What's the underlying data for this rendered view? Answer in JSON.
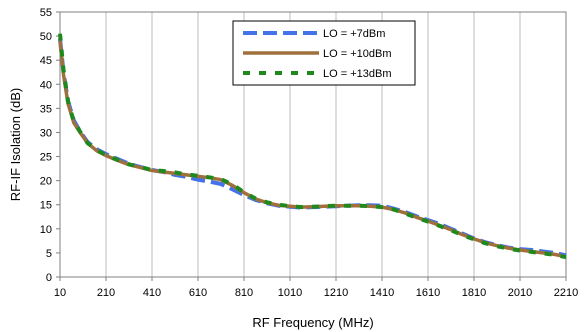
{
  "chart_data": {
    "type": "line",
    "title": "",
    "xlabel": "RF Frequency (MHz)",
    "ylabel": "RF-IF Isolation (dB)",
    "xlim": [
      10,
      2210
    ],
    "ylim": [
      0,
      55
    ],
    "x_ticks": [
      "10",
      "210",
      "410",
      "610",
      "810",
      "1010",
      "1210",
      "1410",
      "1610",
      "1810",
      "2010",
      "2210"
    ],
    "y_ticks": [
      "0",
      "5",
      "10",
      "15",
      "20",
      "25",
      "30",
      "35",
      "40",
      "45",
      "50",
      "55"
    ],
    "grid": "vertical",
    "legend_position": "top-center",
    "series": [
      {
        "name": "LO = +7dBm",
        "color": "#4472E8",
        "style": "dashed",
        "x": [
          10,
          25,
          45,
          70,
          100,
          130,
          170,
          210,
          260,
          310,
          360,
          410,
          460,
          510,
          560,
          610,
          660,
          710,
          760,
          810,
          860,
          910,
          960,
          1010,
          1060,
          1110,
          1160,
          1210,
          1260,
          1310,
          1360,
          1410,
          1460,
          1510,
          1560,
          1610,
          1660,
          1710,
          1760,
          1810,
          1860,
          1910,
          1960,
          2010,
          2060,
          2110,
          2160,
          2210
        ],
        "y": [
          49.5,
          42.5,
          36.5,
          32.5,
          30,
          28,
          26.5,
          25.5,
          24.5,
          23.5,
          22.8,
          22.2,
          21.8,
          21.2,
          20.8,
          20.2,
          19.8,
          19.3,
          18.2,
          17,
          16,
          15.3,
          14.8,
          14.6,
          14.4,
          14.5,
          14.6,
          14.7,
          14.8,
          14.9,
          14.9,
          14.8,
          14.2,
          13.5,
          12.6,
          11.8,
          11,
          10,
          9,
          8,
          7.2,
          6.6,
          6.1,
          5.8,
          5.6,
          5.3,
          5,
          4.5
        ]
      },
      {
        "name": "LO = +10dBm",
        "color": "#A0703C",
        "style": "solid",
        "x": [
          10,
          25,
          45,
          70,
          100,
          130,
          170,
          210,
          260,
          310,
          360,
          410,
          460,
          510,
          560,
          610,
          660,
          710,
          760,
          810,
          860,
          910,
          960,
          1010,
          1060,
          1110,
          1160,
          1210,
          1260,
          1310,
          1360,
          1410,
          1460,
          1510,
          1560,
          1610,
          1660,
          1710,
          1760,
          1810,
          1860,
          1910,
          1960,
          2010,
          2060,
          2110,
          2160,
          2210
        ],
        "y": [
          49,
          42,
          36,
          32,
          29.8,
          27.8,
          26.2,
          25.2,
          24.2,
          23.3,
          22.7,
          22.1,
          21.8,
          21.5,
          21.2,
          20.9,
          20.6,
          20.2,
          19,
          17.5,
          16.2,
          15.4,
          14.9,
          14.7,
          14.5,
          14.6,
          14.7,
          14.8,
          14.8,
          14.8,
          14.7,
          14.5,
          14,
          13.3,
          12.4,
          11.6,
          10.7,
          9.8,
          8.8,
          7.9,
          7.1,
          6.5,
          6,
          5.6,
          5.3,
          5,
          4.7,
          4.2
        ]
      },
      {
        "name": "LO = +13dBm",
        "color": "#1E8A1E",
        "style": "dashed",
        "x": [
          10,
          25,
          45,
          70,
          100,
          130,
          170,
          210,
          260,
          310,
          360,
          410,
          460,
          510,
          560,
          610,
          660,
          710,
          760,
          810,
          860,
          910,
          960,
          1010,
          1060,
          1110,
          1160,
          1210,
          1260,
          1310,
          1360,
          1410,
          1460,
          1510,
          1560,
          1610,
          1660,
          1710,
          1760,
          1810,
          1860,
          1910,
          1960,
          2010,
          2060,
          2110,
          2160,
          2210
        ],
        "y": [
          50.5,
          43,
          36.5,
          32.3,
          30,
          27.8,
          26.3,
          25.3,
          24.3,
          23.4,
          22.8,
          22.2,
          22,
          21.7,
          21.3,
          21,
          20.7,
          20.3,
          19.2,
          17.6,
          16.3,
          15.5,
          15,
          14.7,
          14.5,
          14.6,
          14.7,
          14.8,
          14.8,
          14.8,
          14.7,
          14.5,
          14,
          13.2,
          12.3,
          11.5,
          10.6,
          9.7,
          8.7,
          7.8,
          7,
          6.4,
          5.9,
          5.5,
          5.2,
          4.9,
          4.6,
          4.1
        ]
      }
    ]
  }
}
